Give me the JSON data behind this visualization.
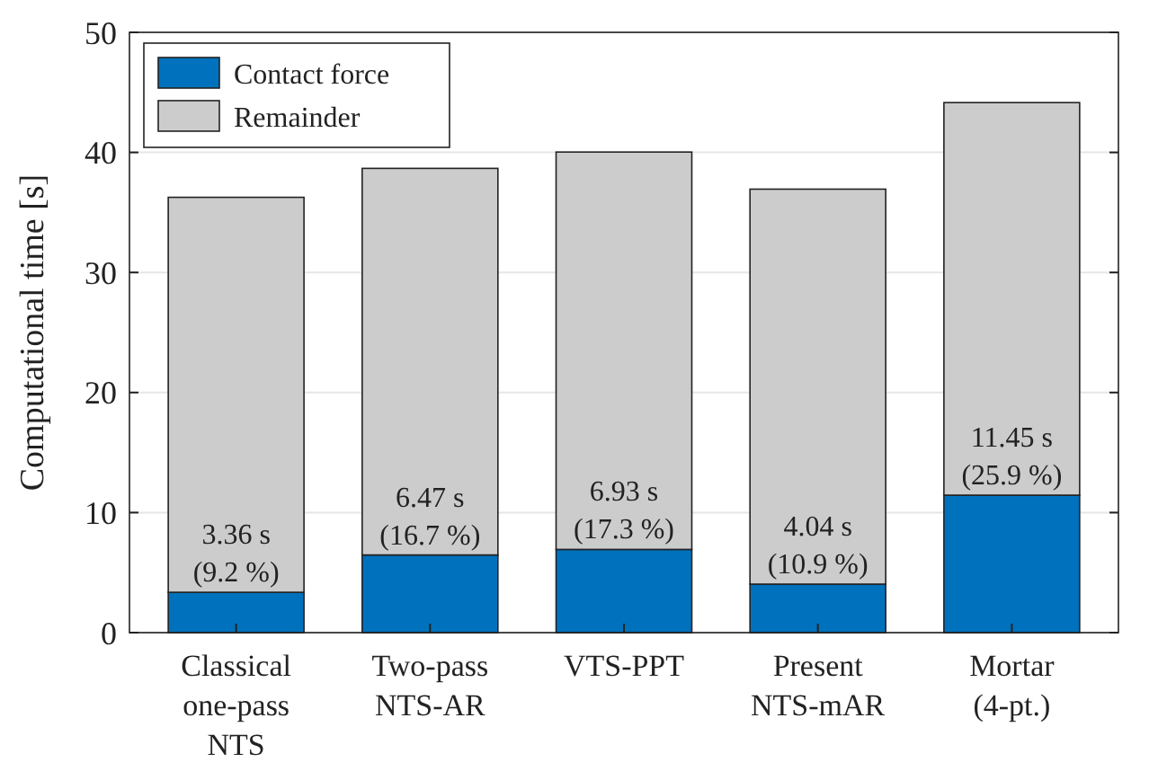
{
  "chart_data": {
    "type": "bar",
    "stacked": true,
    "ylabel": "Computational time [s]",
    "categories": [
      "Classical\none-pass\nNTS",
      "Two-pass\nNTS-AR",
      "VTS-PPT",
      "Present\nNTS-mAR",
      "Mortar\n(4-pt.)"
    ],
    "series": [
      {
        "name": "Contact force",
        "color": "#0072bd",
        "values": [
          3.36,
          6.47,
          6.93,
          4.04,
          11.45
        ],
        "value_labels": [
          "3.36 s\n(9.2 %)",
          "6.47 s\n(16.7 %)",
          "6.93 s\n(17.3 %)",
          "4.04 s\n(10.9 %)",
          "11.45 s\n(25.9 %)"
        ]
      },
      {
        "name": "Remainder",
        "color": "#cccccc",
        "values": [
          32.9,
          32.2,
          33.1,
          32.9,
          32.7
        ]
      }
    ],
    "ylim": [
      0,
      50
    ],
    "yticks": [
      0,
      10,
      20,
      30,
      40,
      50
    ],
    "grid": "y",
    "legend": "top left"
  }
}
